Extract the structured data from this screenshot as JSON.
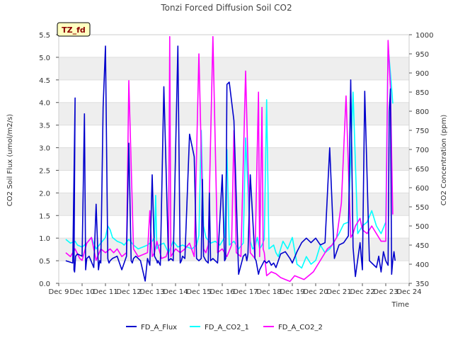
{
  "colors": {
    "flux": "#0000cc",
    "co2_1": "#00ffff",
    "co2_2": "#ff00ff",
    "band": "#eeeeee",
    "badge_fill": "#ffffc0",
    "badge_text": "#8b0000"
  },
  "chart_data": {
    "type": "line",
    "title": "Tonzi Forced Diffusion Soil CO2",
    "badge": "TZ_fd",
    "xlabel": "Time",
    "ylabel_left": "CO2 Soil Flux (umol/m2/s)",
    "ylabel_right": "CO2 Concentration (ppm)",
    "xlim": [
      9,
      24
    ],
    "ylim_left": [
      0,
      5.5
    ],
    "ylim_right": [
      350,
      1000
    ],
    "x_ticks": [
      {
        "value": 9,
        "label": "Dec 9"
      },
      {
        "value": 10,
        "label": "Dec 10"
      },
      {
        "value": 11,
        "label": "Dec 11"
      },
      {
        "value": 12,
        "label": "Dec 12"
      },
      {
        "value": 13,
        "label": "Dec 13"
      },
      {
        "value": 14,
        "label": "Dec 14"
      },
      {
        "value": 15,
        "label": "Dec 15"
      },
      {
        "value": 16,
        "label": "Dec 16"
      },
      {
        "value": 17,
        "label": "Dec 17"
      },
      {
        "value": 18,
        "label": "Dec 18"
      },
      {
        "value": 19,
        "label": "Dec 19"
      },
      {
        "value": 20,
        "label": "Dec 20"
      },
      {
        "value": 21,
        "label": "Dec 21"
      },
      {
        "value": 22,
        "label": "Dec 22"
      },
      {
        "value": 23,
        "label": "Dec 23"
      },
      {
        "value": 24,
        "label": "Dec 24"
      }
    ],
    "y_ticks_left": [
      "0.0",
      "0.5",
      "1.0",
      "1.5",
      "2.0",
      "2.5",
      "3.0",
      "3.5",
      "4.0",
      "4.5",
      "5.0",
      "5.5"
    ],
    "y_ticks_right": [
      "350",
      "400",
      "450",
      "500",
      "550",
      "600",
      "650",
      "700",
      "750",
      "800",
      "850",
      "900",
      "950",
      "1000"
    ],
    "series": [
      {
        "name": "FD_A_Flux",
        "axis": "left",
        "color": "#0000cc",
        "x": [
          9.3,
          9.6,
          9.7,
          9.65,
          9.68,
          9.72,
          9.8,
          10.0,
          10.1,
          10.15,
          10.2,
          10.3,
          10.5,
          10.6,
          10.7,
          10.75,
          10.8,
          10.9,
          11.0,
          11.1,
          11.12,
          11.15,
          11.2,
          11.3,
          11.5,
          11.7,
          11.9,
          12.0,
          12.1,
          12.15,
          12.2,
          12.3,
          12.5,
          12.7,
          12.8,
          12.9,
          13.0,
          13.1,
          13.2,
          13.22,
          13.25,
          13.35,
          13.5,
          13.7,
          13.8,
          13.9,
          14.1,
          14.2,
          14.25,
          14.3,
          14.4,
          14.6,
          14.8,
          14.9,
          15.0,
          15.1,
          15.15,
          15.2,
          15.3,
          15.4,
          15.45,
          15.5,
          15.6,
          15.8,
          16.0,
          16.1,
          16.15,
          16.2,
          16.3,
          16.5,
          16.7,
          16.9,
          17.0,
          17.05,
          17.1,
          17.2,
          17.4,
          17.45,
          17.5,
          17.55,
          17.6,
          17.65,
          17.7,
          17.8,
          17.9,
          18.0,
          18.1,
          18.2,
          18.3,
          18.5,
          18.7,
          18.9,
          19.0,
          19.2,
          19.4,
          19.6,
          19.8,
          20.0,
          20.2,
          20.4,
          20.6,
          20.8,
          21.0,
          21.2,
          21.4,
          21.5,
          21.6,
          21.7,
          21.9,
          22.0,
          22.1,
          22.3,
          22.5,
          22.6,
          22.7,
          22.8,
          22.9,
          23.0,
          23.1,
          23.15,
          23.2,
          23.25,
          23.3,
          23.35,
          23.4
        ],
        "y": [
          0.5,
          0.45,
          4.1,
          0.3,
          0.25,
          0.6,
          0.65,
          0.6,
          3.75,
          0.3,
          0.55,
          0.6,
          0.35,
          1.75,
          0.3,
          0.5,
          0.45,
          3.9,
          5.25,
          0.55,
          0.5,
          0.45,
          0.5,
          0.55,
          0.6,
          0.3,
          0.6,
          3.1,
          0.5,
          0.45,
          0.55,
          0.6,
          0.5,
          0.05,
          0.55,
          0.4,
          2.4,
          0.6,
          0.5,
          0.45,
          0.5,
          0.4,
          4.35,
          0.5,
          0.55,
          0.5,
          5.25,
          0.45,
          0.5,
          0.6,
          0.55,
          3.3,
          2.8,
          0.55,
          0.5,
          0.55,
          2.3,
          0.6,
          0.5,
          0.45,
          2.0,
          0.5,
          0.55,
          0.45,
          2.4,
          0.5,
          0.55,
          4.4,
          4.45,
          3.6,
          0.2,
          0.6,
          0.65,
          0.5,
          0.65,
          2.4,
          0.55,
          0.5,
          0.35,
          0.2,
          0.3,
          0.35,
          0.4,
          0.5,
          0.45,
          0.5,
          0.4,
          0.45,
          0.35,
          0.65,
          0.7,
          0.55,
          0.45,
          0.7,
          0.9,
          1.0,
          0.9,
          1.0,
          0.85,
          0.9,
          3.0,
          0.55,
          0.85,
          0.9,
          1.05,
          4.5,
          0.8,
          0.15,
          0.9,
          0.3,
          4.25,
          0.5,
          0.4,
          0.35,
          0.6,
          0.25,
          0.7,
          0.5,
          0.4,
          3.8,
          4.3,
          0.2,
          0.5,
          0.7,
          0.5
        ]
      },
      {
        "name": "FD_A_CO2_1",
        "axis": "right",
        "color": "#00ffff",
        "x": [
          9.3,
          9.5,
          9.7,
          9.8,
          10.0,
          10.2,
          10.4,
          10.6,
          10.8,
          11.0,
          11.1,
          11.2,
          11.3,
          11.5,
          11.7,
          11.8,
          12.0,
          12.2,
          12.4,
          12.6,
          12.8,
          13.0,
          13.1,
          13.15,
          13.2,
          13.3,
          13.5,
          13.7,
          13.9,
          14.1,
          14.3,
          14.5,
          14.7,
          14.9,
          15.0,
          15.1,
          15.2,
          15.3,
          15.5,
          15.7,
          15.9,
          16.1,
          16.2,
          16.3,
          16.5,
          16.7,
          16.9,
          17.0,
          17.2,
          17.3,
          17.4,
          17.5,
          17.6,
          17.7,
          17.8,
          17.9,
          18.0,
          18.2,
          18.3,
          18.4,
          18.6,
          18.8,
          19.0,
          19.2,
          19.4,
          19.6,
          19.8,
          20.0,
          20.2,
          20.4,
          20.6,
          20.8,
          21.0,
          21.2,
          21.4,
          21.6,
          21.8,
          22.0,
          22.2,
          22.4,
          22.6,
          22.8,
          23.0,
          23.1,
          23.2,
          23.3
        ],
        "y": [
          465,
          455,
          460,
          450,
          445,
          455,
          470,
          440,
          455,
          470,
          500,
          490,
          470,
          460,
          455,
          450,
          465,
          450,
          440,
          445,
          450,
          460,
          470,
          580,
          440,
          450,
          455,
          430,
          460,
          445,
          450,
          445,
          440,
          450,
          475,
          750,
          500,
          470,
          455,
          460,
          450,
          470,
          700,
          450,
          460,
          440,
          455,
          730,
          460,
          440,
          445,
          470,
          440,
          450,
          465,
          830,
          440,
          450,
          430,
          420,
          460,
          440,
          470,
          400,
          390,
          420,
          400,
          410,
          450,
          430,
          440,
          460,
          480,
          505,
          510,
          850,
          480,
          500,
          510,
          540,
          500,
          480,
          510,
          970,
          900,
          820
        ]
      },
      {
        "name": "FD_A_CO2_2",
        "axis": "right",
        "color": "#ff00ff",
        "x": [
          9.3,
          9.5,
          9.7,
          9.9,
          10.0,
          10.2,
          10.4,
          10.6,
          10.8,
          11.0,
          11.1,
          11.2,
          11.35,
          11.5,
          11.7,
          11.8,
          11.9,
          12.0,
          12.2,
          12.4,
          12.6,
          12.8,
          12.9,
          13.0,
          13.1,
          13.2,
          13.4,
          13.6,
          13.7,
          13.75,
          13.8,
          14.0,
          14.2,
          14.4,
          14.6,
          14.8,
          15.0,
          15.2,
          15.3,
          15.4,
          15.6,
          15.8,
          16.0,
          16.2,
          16.4,
          16.5,
          16.6,
          16.8,
          17.0,
          17.2,
          17.4,
          17.55,
          17.6,
          17.7,
          17.75,
          17.8,
          17.9,
          18.1,
          18.3,
          18.5,
          18.7,
          18.9,
          19.1,
          19.3,
          19.5,
          19.7,
          19.9,
          20.1,
          20.3,
          20.5,
          20.7,
          20.9,
          21.1,
          21.3,
          21.5,
          21.6,
          21.7,
          21.9,
          22.0,
          22.2,
          22.4,
          22.6,
          22.8,
          23.0,
          23.1,
          23.2,
          23.3
        ],
        "y": [
          430,
          420,
          440,
          415,
          410,
          455,
          470,
          410,
          440,
          430,
          435,
          440,
          430,
          440,
          420,
          425,
          430,
          880,
          440,
          420,
          425,
          430,
          540,
          420,
          430,
          460,
          415,
          420,
          440,
          995,
          420,
          440,
          430,
          440,
          455,
          420,
          950,
          440,
          430,
          450,
          995,
          430,
          440,
          420,
          450,
          750,
          430,
          420,
          905,
          430,
          415,
          850,
          420,
          810,
          440,
          430,
          370,
          380,
          375,
          365,
          360,
          355,
          370,
          365,
          360,
          370,
          380,
          400,
          420,
          440,
          450,
          470,
          560,
          840,
          470,
          480,
          500,
          520,
          490,
          480,
          500,
          480,
          460,
          460,
          985,
          860,
          530
        ]
      }
    ]
  },
  "legend": [
    {
      "label": "FD_A_Flux",
      "color": "#0000cc"
    },
    {
      "label": "FD_A_CO2_1",
      "color": "#00ffff"
    },
    {
      "label": "FD_A_CO2_2",
      "color": "#ff00ff"
    }
  ]
}
